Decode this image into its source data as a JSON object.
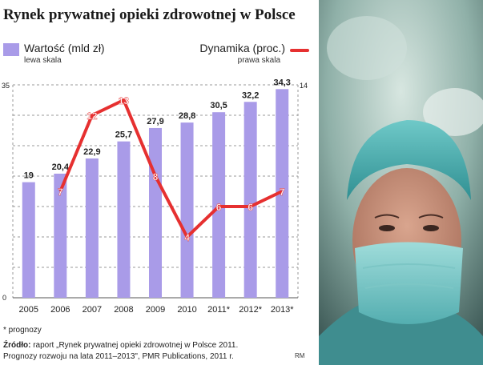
{
  "title": "Rynek prywatnej opieki zdrowotnej w Polsce",
  "legend": {
    "left_label": "Wartość (mld zł)",
    "left_scale": "lewa skala",
    "right_label": "Dynamika (proc.)",
    "right_scale": "prawa skala"
  },
  "footnote": "* prognozy",
  "source_label": "Źródło:",
  "source_line1": " raport „Rynek prywatnej opieki zdrowotnej w Polsce 2011.",
  "source_line2": "Prognozy rozwoju na lata 2011–2013\", PMR Publications, 2011 r.",
  "credit": "RM",
  "photo_description": "Surgeon in teal cap and surgical mask",
  "colors": {
    "bar": "#a99be8",
    "line": "#e63030",
    "grid": "#9a9a9a"
  },
  "chart_data": {
    "type": "bar+line",
    "categories": [
      "2005",
      "2006",
      "2007",
      "2008",
      "2009",
      "2010",
      "2011*",
      "2012*",
      "2013*"
    ],
    "series": [
      {
        "name": "Wartość (mld zł)",
        "type": "bar",
        "axis": "left",
        "values": [
          19,
          20.4,
          22.9,
          25.7,
          27.9,
          28.8,
          30.5,
          32.2,
          34.3
        ],
        "labels": [
          "19",
          "20,4",
          "22,9",
          "25,7",
          "27,9",
          "28,8",
          "30,5",
          "32,2",
          "34,3"
        ]
      },
      {
        "name": "Dynamika (proc.)",
        "type": "line",
        "axis": "right",
        "values": [
          null,
          7,
          12,
          13,
          8,
          4,
          6,
          6,
          7
        ],
        "labels": [
          "",
          "7",
          "12",
          "13",
          "8",
          "4",
          "6",
          "6",
          "7"
        ]
      }
    ],
    "left_axis": {
      "ylim": [
        0,
        35
      ],
      "tick_labels": [
        "0",
        "35"
      ]
    },
    "right_axis": {
      "ylim": [
        0,
        14
      ],
      "tick_labels": [
        "14"
      ]
    },
    "grid": true,
    "legend_position": "top"
  }
}
